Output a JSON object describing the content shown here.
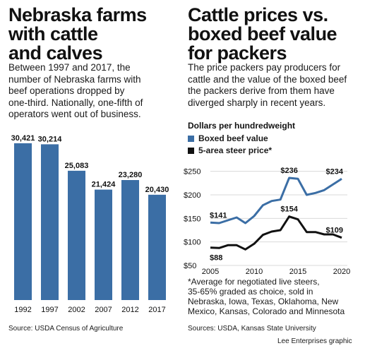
{
  "left_panel": {
    "title_lines": [
      "Nebraska farms",
      "with cattle",
      "and calves"
    ],
    "deck_lines": [
      "Between 1997 and 2017, the",
      "number of Nebraska farms with",
      "beef operations dropped by",
      "one-third. Nationally, one-fifth of",
      "operators went out of business."
    ],
    "source": "Source: USDA Census of Agriculture"
  },
  "right_panel": {
    "title_lines": [
      "Cattle prices vs.",
      "boxed beef value",
      "for packers"
    ],
    "deck_lines": [
      "The price packers pay producers for",
      "cattle and the value of the boxed beef",
      "the packers derive from them have",
      "diverged sharply in recent years."
    ],
    "units_label": "Dollars per hundredweight",
    "note_lines": [
      "*Average for negotiated live steers,",
      "35-65% graded as choice, sold in",
      "Nebraska, Iowa, Texas, Oklahoma, New",
      "Mexico, Kansas, Colorado and Minnesota"
    ],
    "source": "Sources: USDA, Kansas State University"
  },
  "credit": "Lee Enterprises graphic",
  "colors": {
    "bar": "#3b6ea5",
    "boxed_beef": "#3b6ea5",
    "steer": "#111111",
    "grid": "#d9d9d9"
  },
  "chart_data": [
    {
      "type": "bar",
      "categories": [
        "1992",
        "1997",
        "2002",
        "2007",
        "2012",
        "2017"
      ],
      "values": [
        30421,
        30214,
        25083,
        21424,
        23280,
        20430
      ],
      "value_labels": [
        "30,421",
        "30,214",
        "25,083",
        "21,424",
        "23,280",
        "20,430"
      ],
      "ylim": [
        0,
        31500
      ]
    },
    {
      "type": "line",
      "x": [
        2005,
        2006,
        2007,
        2008,
        2009,
        2010,
        2011,
        2012,
        2013,
        2014,
        2015,
        2016,
        2017,
        2018,
        2019,
        2020
      ],
      "series": [
        {
          "name": "Boxed beef value",
          "values": [
            141,
            140,
            146,
            152,
            140,
            155,
            178,
            187,
            190,
            236,
            234,
            200,
            204,
            210,
            222,
            234
          ]
        },
        {
          "name": "5-area steer price*",
          "values": [
            88,
            87,
            93,
            93,
            84,
            96,
            115,
            122,
            125,
            154,
            148,
            121,
            121,
            116,
            116,
            109
          ]
        }
      ],
      "point_labels": [
        {
          "series": 0,
          "index": 0,
          "text": "$141"
        },
        {
          "series": 0,
          "index": 9,
          "text": "$236"
        },
        {
          "series": 0,
          "index": 15,
          "text": "$234"
        },
        {
          "series": 1,
          "index": 0,
          "text": "$88"
        },
        {
          "series": 1,
          "index": 9,
          "text": "$154"
        },
        {
          "series": 1,
          "index": 15,
          "text": "$109"
        }
      ],
      "y_ticks": [
        250,
        200,
        150,
        100,
        50
      ],
      "y_tick_labels": [
        "$250",
        "$200",
        "$150",
        "$100",
        "$50"
      ],
      "x_ticks": [
        2005,
        2010,
        2015,
        2020
      ],
      "x_tick_labels": [
        "2005",
        "2010",
        "2015",
        "2020"
      ],
      "xlim": [
        2005,
        2020
      ],
      "ylim": [
        50,
        260
      ],
      "grid": true,
      "legend_position": "top-left"
    }
  ]
}
